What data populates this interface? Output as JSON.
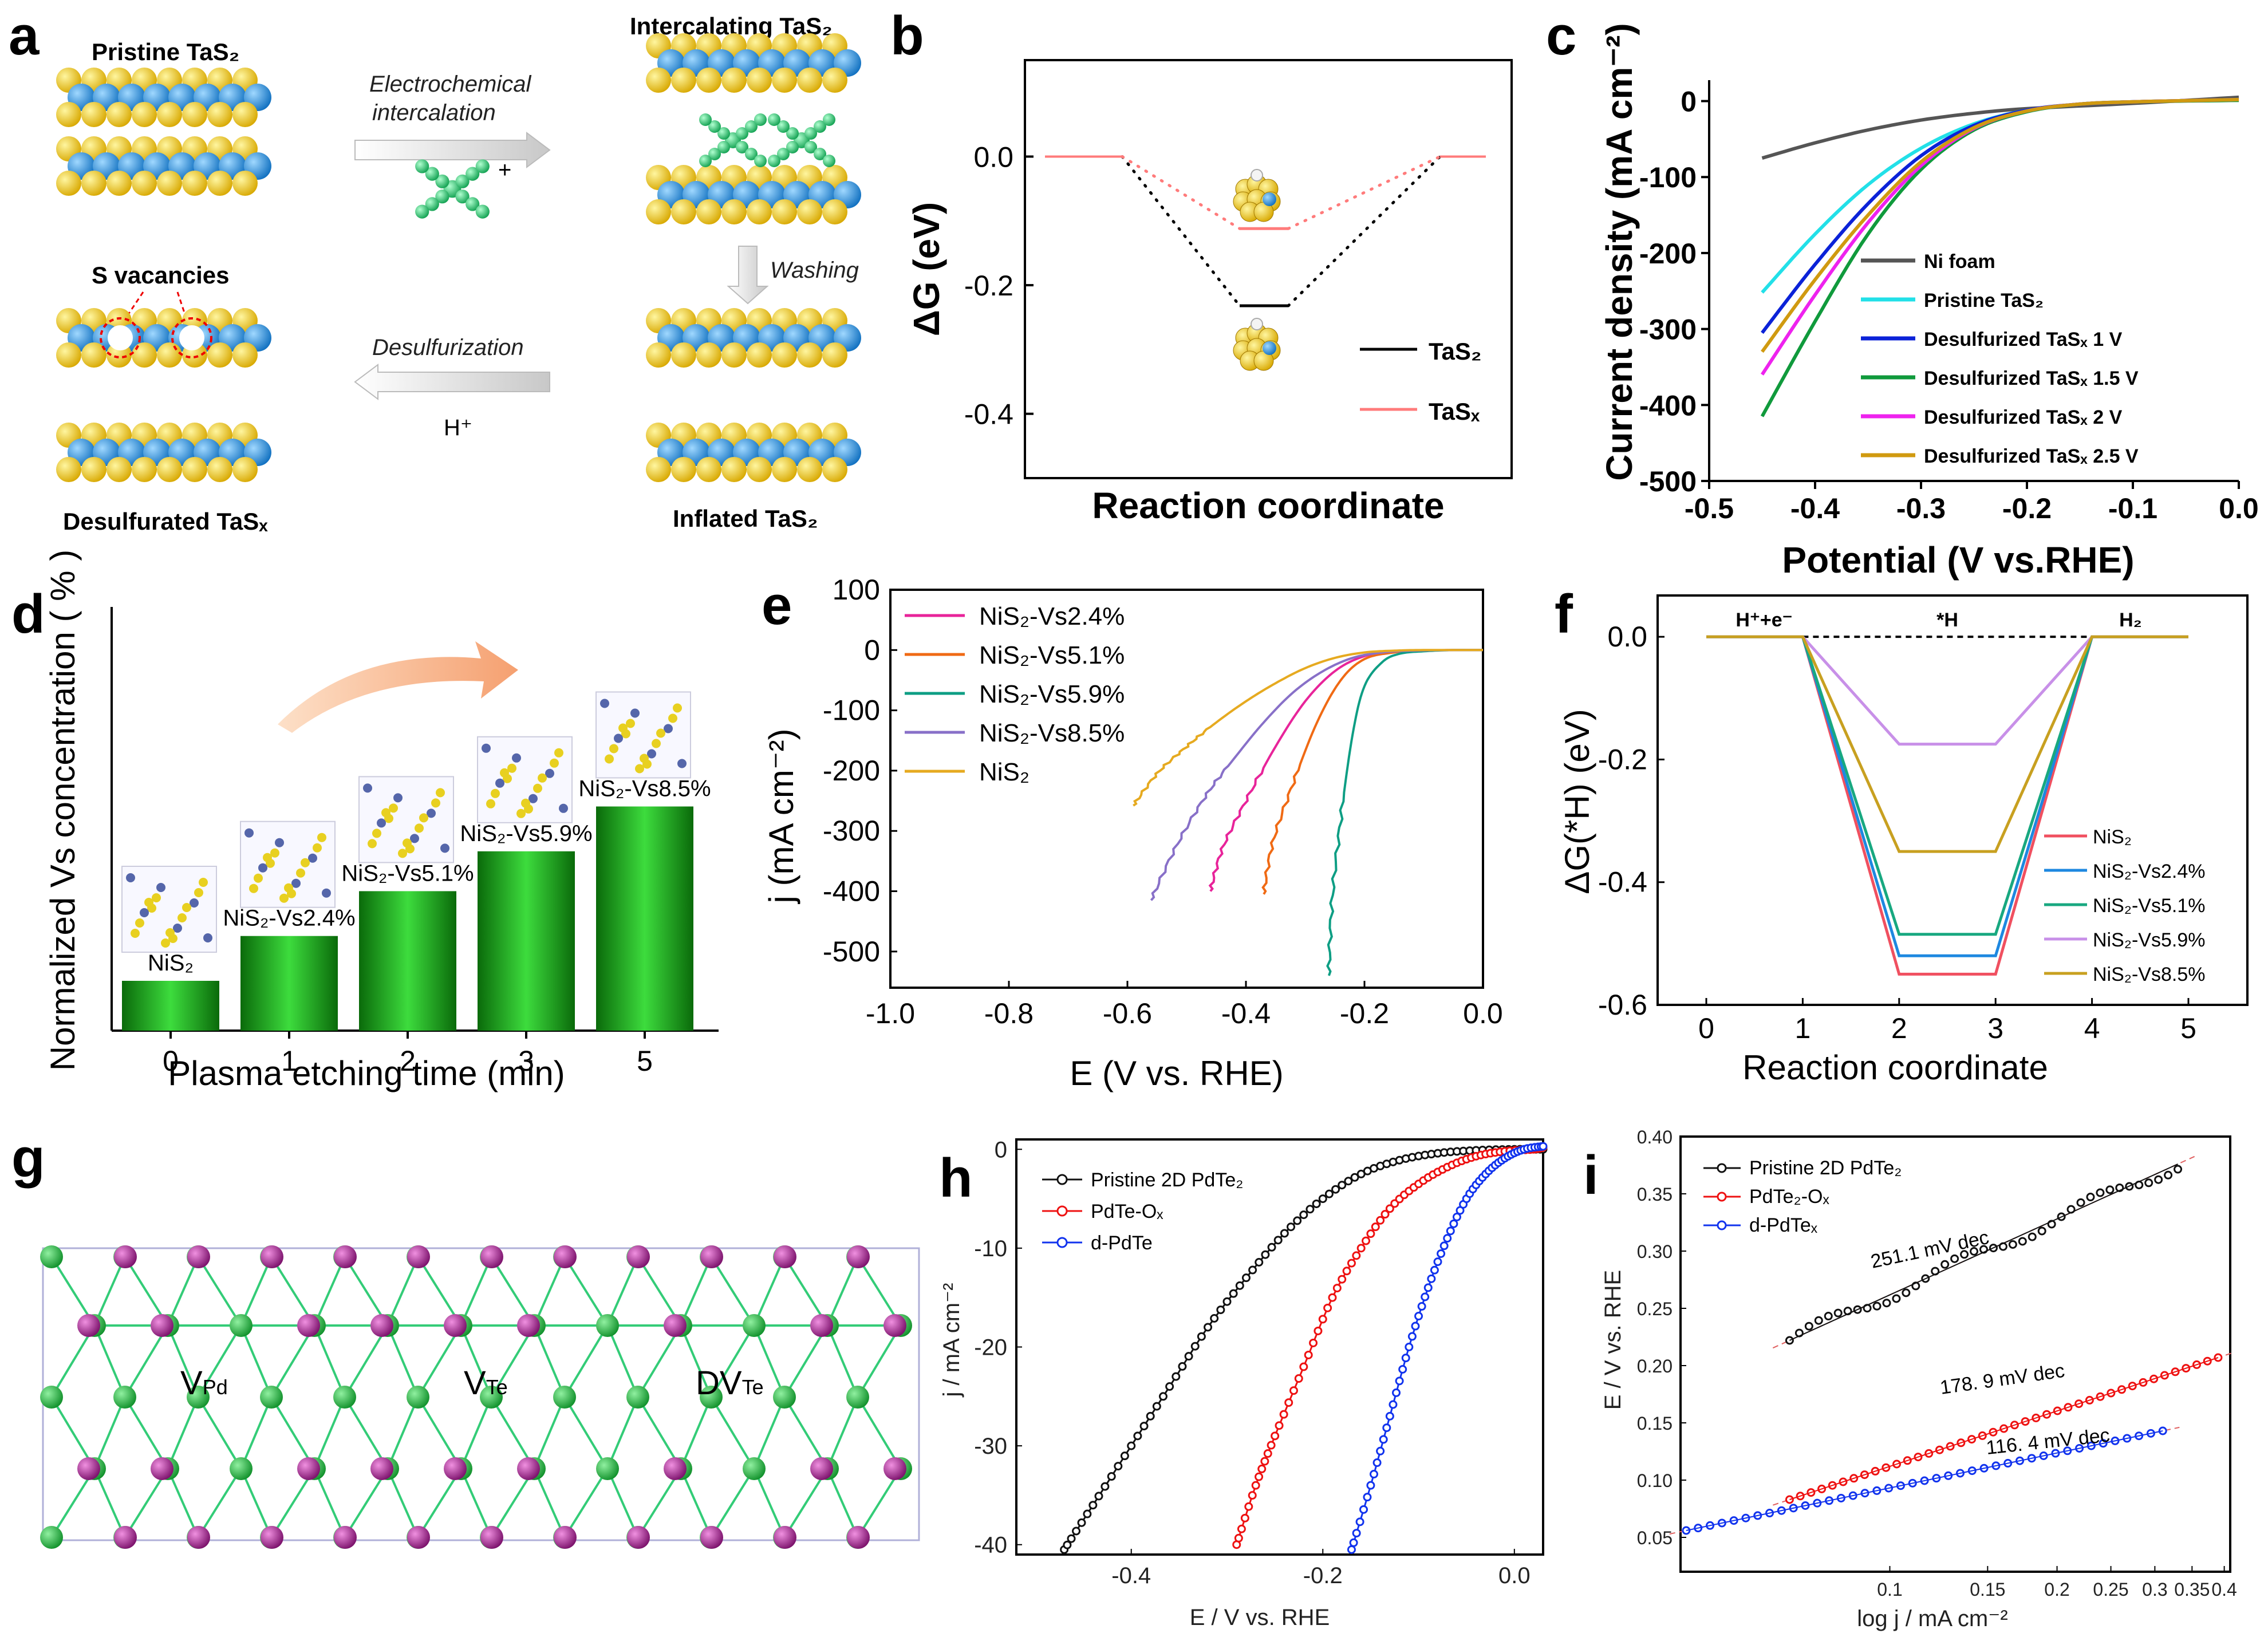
{
  "colors": {
    "tas2": "#000000",
    "tasx": "#ff7b7b",
    "nifoam": "#555555",
    "pristine_tas2": "#22e0e8",
    "d1v": "#0b22d8",
    "d15v": "#109a3c",
    "d2v": "#ee22ee",
    "d25v": "#d09a10",
    "nis2_24": "#e8249a",
    "nis2_51": "#f06a14",
    "nis2_59": "#0e9e84",
    "nis2_85": "#8870c8",
    "nis2": "#e6aa20",
    "f_nis2": "#f05060",
    "f_24": "#1e88e0",
    "f_51": "#18a880",
    "f_59": "#c890e8",
    "f_85": "#c8a020",
    "pdte2": "#111111",
    "pdteox": "#ee1111",
    "dpdte": "#1133ee",
    "bar_green": "#1aa51a",
    "atom_green": "#22bb55",
    "atom_purple": "#991a8a",
    "bond": "#33cc77"
  },
  "panel_a": {
    "letter": "a",
    "pristine": "Pristine TaS₂",
    "electro_1": "Electrochemical",
    "electro_2": "intercalation",
    "cation_sign": "+",
    "intercalating": "Intercalating TaS₂",
    "washing": "Washing",
    "s_vacancies": "S vacancies",
    "desulfurization": "Desulfurization",
    "hplus": "H⁺",
    "desulfurated": "Desulfurated TaSₓ",
    "inflated": "Inflated TaS₂"
  },
  "panel_g": {
    "letter": "g",
    "v_pd": "V",
    "v_pd_sub": "Pd",
    "v_te": "V",
    "v_te_sub": "Te",
    "dv_te": "DV",
    "dv_te_sub": "Te"
  },
  "chart_data": [
    {
      "id": "b",
      "type": "line",
      "letter": "b",
      "title": "",
      "xlabel": "Reaction coordinate",
      "ylabel": "ΔG (eV)",
      "ylim": [
        -0.5,
        0.15
      ],
      "yticks": [
        "0.0",
        "-0.2",
        "-0.4"
      ],
      "series": [
        {
          "name": "TaS₂",
          "values": [
            0.0,
            -0.232,
            0.0
          ]
        },
        {
          "name": "TaSₓ",
          "values": [
            0.0,
            -0.112,
            0.0
          ]
        }
      ]
    },
    {
      "id": "c",
      "type": "line",
      "letter": "c",
      "xlabel": "Potential (V vs.RHE)",
      "ylabel": "Current density (mA cm⁻²)",
      "xlim": [
        -0.5,
        0.0
      ],
      "ylim": [
        -500,
        20
      ],
      "xticks": [
        "-0.5",
        "-0.4",
        "-0.3",
        "-0.2",
        "-0.1",
        "0.0"
      ],
      "yticks": [
        "0",
        "-100",
        "-200",
        "-300",
        "-400",
        "-500"
      ],
      "series": [
        {
          "name": "Ni foam",
          "x": [
            -0.45,
            -0.4,
            -0.35,
            -0.3,
            -0.25,
            -0.2,
            -0.1,
            0.0
          ],
          "y": [
            -75,
            -55,
            -38,
            -25,
            -16,
            -10,
            -3,
            5
          ]
        },
        {
          "name": "Pristine TaS₂",
          "x": [
            -0.45,
            -0.4,
            -0.35,
            -0.3,
            -0.25,
            -0.2,
            -0.15,
            -0.1,
            0.0
          ],
          "y": [
            -252,
            -175,
            -110,
            -62,
            -30,
            -12,
            -4,
            -1,
            2
          ]
        },
        {
          "name": "Desulfurized TaSₓ 1 V",
          "x": [
            -0.45,
            -0.4,
            -0.35,
            -0.3,
            -0.25,
            -0.2,
            -0.15,
            -0.1,
            0.0
          ],
          "y": [
            -305,
            -215,
            -135,
            -72,
            -32,
            -12,
            -4,
            -1,
            2
          ]
        },
        {
          "name": "Desulfurized TaSₓ 1.5 V",
          "x": [
            -0.45,
            -0.4,
            -0.35,
            -0.3,
            -0.25,
            -0.2,
            -0.15,
            -0.1,
            0.0
          ],
          "y": [
            -415,
            -290,
            -175,
            -90,
            -38,
            -14,
            -4,
            -1,
            1
          ]
        },
        {
          "name": "Desulfurized TaSₓ 2 V",
          "x": [
            -0.45,
            -0.4,
            -0.35,
            -0.3,
            -0.25,
            -0.2,
            -0.15,
            -0.1,
            0.0
          ],
          "y": [
            -360,
            -255,
            -160,
            -85,
            -36,
            -13,
            -4,
            -1,
            2
          ]
        },
        {
          "name": "Desulfurized TaSₓ 2.5 V",
          "x": [
            -0.45,
            -0.4,
            -0.35,
            -0.3,
            -0.25,
            -0.2,
            -0.15,
            -0.1,
            0.0
          ],
          "y": [
            -330,
            -235,
            -150,
            -80,
            -35,
            -13,
            -4,
            -1,
            2
          ]
        }
      ]
    },
    {
      "id": "d",
      "type": "bar",
      "letter": "d",
      "xlabel": "Plasma etching time (min)",
      "ylabel": "Normalized Vs concentration ( % )",
      "categories": [
        "0",
        "1",
        "2",
        "3",
        "5"
      ],
      "values": [
        1.0,
        1.9,
        2.8,
        3.6,
        4.5
      ],
      "bar_labels": [
        "NiS₂",
        "NiS₂-Vs2.4%",
        "NiS₂-Vs5.1%",
        "NiS₂-Vs5.9%",
        "NiS₂-Vs8.5%"
      ]
    },
    {
      "id": "e",
      "type": "line",
      "letter": "e",
      "xlabel": "E (V vs. RHE)",
      "ylabel": "j (mA cm⁻²)",
      "xlim": [
        -1.0,
        0.0
      ],
      "ylim": [
        -560,
        100
      ],
      "xticks": [
        "-1.0",
        "-0.8",
        "-0.6",
        "-0.4",
        "-0.2",
        "0.0"
      ],
      "yticks": [
        "100",
        "0",
        "-100",
        "-200",
        "-300",
        "-400",
        "-500"
      ],
      "series": [
        {
          "name": "NiS₂-Vs2.4%",
          "x": [
            -0.46,
            -0.44,
            -0.4,
            -0.35,
            -0.3,
            -0.25,
            -0.2,
            -0.15,
            -0.1,
            -0.05,
            0.0
          ],
          "y": [
            -400,
            -330,
            -250,
            -160,
            -85,
            -35,
            -10,
            -3,
            -1,
            0,
            0
          ]
        },
        {
          "name": "NiS₂-Vs5.1%",
          "x": [
            -0.37,
            -0.355,
            -0.32,
            -0.28,
            -0.24,
            -0.2,
            -0.15,
            -0.1,
            -0.05,
            0.0
          ],
          "y": [
            -405,
            -320,
            -220,
            -120,
            -50,
            -15,
            -4,
            -1,
            0,
            0
          ]
        },
        {
          "name": "NiS₂-Vs5.9%",
          "x": [
            -0.26,
            -0.255,
            -0.24,
            -0.22,
            -0.2,
            -0.17,
            -0.14,
            -0.1,
            -0.05,
            0.0
          ],
          "y": [
            -540,
            -420,
            -280,
            -140,
            -60,
            -20,
            -6,
            -2,
            0,
            0
          ]
        },
        {
          "name": "NiS₂-Vs8.5%",
          "x": [
            -0.56,
            -0.52,
            -0.47,
            -0.42,
            -0.37,
            -0.32,
            -0.27,
            -0.22,
            -0.17,
            -0.12,
            -0.05,
            0.0
          ],
          "y": [
            -415,
            -330,
            -245,
            -180,
            -120,
            -70,
            -35,
            -13,
            -4,
            -1,
            0,
            0
          ]
        },
        {
          "name": "NiS₂",
          "x": [
            -0.59,
            -0.55,
            -0.5,
            -0.45,
            -0.4,
            -0.35,
            -0.3,
            -0.25,
            -0.2,
            -0.15,
            -0.1,
            0.0
          ],
          "y": [
            -258,
            -205,
            -160,
            -120,
            -85,
            -55,
            -30,
            -13,
            -4,
            -1,
            0,
            0
          ]
        }
      ]
    },
    {
      "id": "f",
      "type": "line",
      "letter": "f",
      "xlabel": "Reaction coordinate",
      "ylabel": "ΔG(*H)  (eV)",
      "xlim": [
        0,
        5
      ],
      "ylim": [
        -0.6,
        0.03
      ],
      "xticks": [
        "0",
        "1",
        "2",
        "3",
        "4",
        "5"
      ],
      "yticks": [
        "0.0",
        "-0.2",
        "-0.4",
        "-0.6"
      ],
      "annotations": [
        "H⁺+e⁻",
        "*H",
        "H₂"
      ],
      "series": [
        {
          "name": "NiS₂",
          "x": [
            0,
            1,
            2,
            3,
            4,
            5
          ],
          "y": [
            0,
            0,
            -0.55,
            -0.55,
            0,
            0
          ]
        },
        {
          "name": "NiS₂-Vs2.4%",
          "x": [
            0,
            1,
            2,
            3,
            4,
            5
          ],
          "y": [
            0,
            0,
            -0.52,
            -0.52,
            0,
            0
          ]
        },
        {
          "name": "NiS₂-Vs5.1%",
          "x": [
            0,
            1,
            2,
            3,
            4,
            5
          ],
          "y": [
            0,
            0,
            -0.485,
            -0.485,
            0,
            0
          ]
        },
        {
          "name": "NiS₂-Vs5.9%",
          "x": [
            0,
            1,
            2,
            3,
            4,
            5
          ],
          "y": [
            0,
            0,
            -0.175,
            -0.175,
            0,
            0
          ]
        },
        {
          "name": "NiS₂-Vs8.5%",
          "x": [
            0,
            1,
            2,
            3,
            4,
            5
          ],
          "y": [
            0,
            0,
            -0.35,
            -0.35,
            0,
            0
          ]
        }
      ]
    },
    {
      "id": "h",
      "type": "scatter",
      "letter": "h",
      "xlabel": "E / V vs. RHE",
      "ylabel": "j / mA cm⁻²",
      "xlim": [
        -0.52,
        0.03
      ],
      "ylim": [
        -41,
        1
      ],
      "xticks": [
        "-0.4",
        "-0.2",
        "0.0"
      ],
      "yticks": [
        "0",
        "-10",
        "-20",
        "-30",
        "-40"
      ],
      "series": [
        {
          "name": "Pristine 2D PdTe₂",
          "x": [
            -0.47,
            -0.44,
            -0.4,
            -0.36,
            -0.32,
            -0.28,
            -0.24,
            -0.2,
            -0.16,
            -0.12,
            -0.08,
            -0.04,
            0.0,
            0.03
          ],
          "y": [
            -40.5,
            -36,
            -30,
            -24,
            -18,
            -13,
            -8.5,
            -5,
            -2.5,
            -1.1,
            -0.4,
            -0.1,
            0,
            0
          ]
        },
        {
          "name": "PdTe-Oₓ",
          "x": [
            -0.29,
            -0.27,
            -0.25,
            -0.22,
            -0.19,
            -0.16,
            -0.13,
            -0.1,
            -0.07,
            -0.04,
            -0.01,
            0.02,
            0.03
          ],
          "y": [
            -40,
            -34,
            -29,
            -22,
            -15,
            -10,
            -6,
            -3.5,
            -1.8,
            -0.7,
            -0.2,
            0,
            0.2
          ]
        },
        {
          "name": "d-PdTe",
          "x": [
            -0.17,
            -0.15,
            -0.13,
            -0.11,
            -0.09,
            -0.07,
            -0.05,
            -0.03,
            -0.01,
            0.01,
            0.03
          ],
          "y": [
            -40.5,
            -34,
            -27,
            -20,
            -14,
            -9,
            -5,
            -2.5,
            -0.9,
            0,
            0.3
          ]
        }
      ]
    },
    {
      "id": "i",
      "type": "scatter",
      "letter": "i",
      "xlabel": "log j / mA cm⁻²",
      "ylabel": "E / V vs. RHE",
      "xscale": "log",
      "xlim": [
        0.042,
        0.41
      ],
      "ylim": [
        0.02,
        0.4
      ],
      "xticks": [
        "0.1",
        "0.15",
        "0.2",
        "0.25",
        "0.3",
        "0.35",
        "0.4"
      ],
      "yticks": [
        "0.40",
        "0.35",
        "0.30",
        "0.25",
        "0.20",
        "0.15",
        "0.10",
        "0.05"
      ],
      "annotations": [
        "251.1 mV dec",
        "178. 9 mV dec",
        "116. 4 mV dec"
      ],
      "series": [
        {
          "name": "Pristine 2D PdTe₂",
          "x": [
            0.066,
            0.33
          ],
          "y": [
            0.222,
            0.376
          ],
          "tafel": "251.1 mV dec"
        },
        {
          "name": "PdTe₂-Oₓ",
          "x": [
            0.066,
            0.39
          ],
          "y": [
            0.083,
            0.207
          ],
          "tafel": "178. 9 mV dec"
        },
        {
          "name": "d-PdTeₓ",
          "x": [
            0.043,
            0.31
          ],
          "y": [
            0.056,
            0.143
          ],
          "tafel": "116. 4 mV dec"
        }
      ]
    }
  ]
}
